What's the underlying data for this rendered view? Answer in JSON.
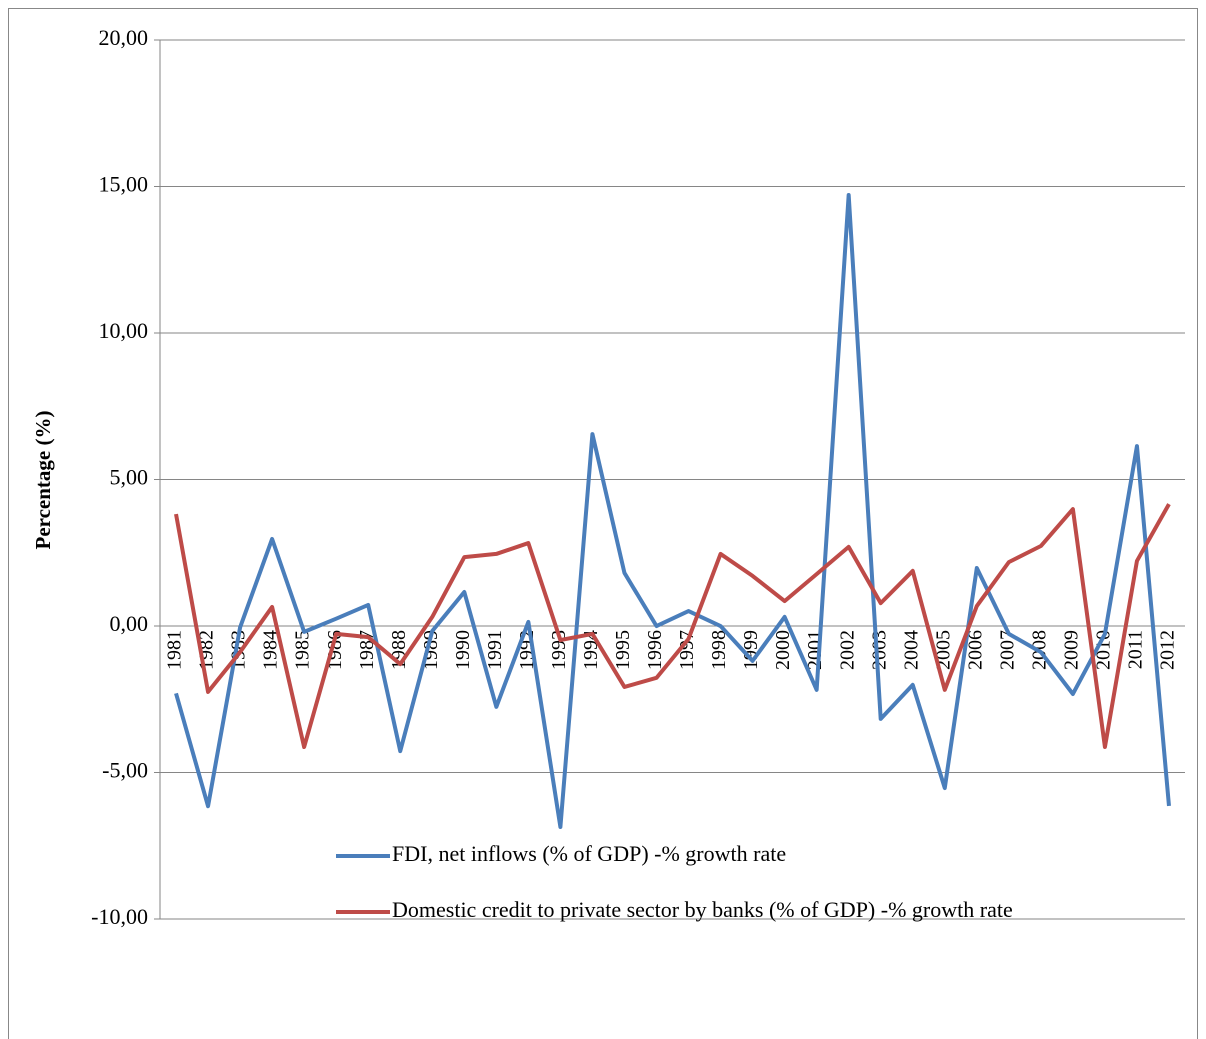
{
  "chart_data": {
    "type": "line",
    "y_label": "Percentage (%)",
    "categories": [
      "1981",
      "1982",
      "1983",
      "1984",
      "1985",
      "1986",
      "1987",
      "1988",
      "1989",
      "1990",
      "1991",
      "1992",
      "1993",
      "1994",
      "1995",
      "1996",
      "1997",
      "1998",
      "1999",
      "2000",
      "2001",
      "2002",
      "2003",
      "2004",
      "2005",
      "2006",
      "2007",
      "2008",
      "2009",
      "2010",
      "2011",
      "2012"
    ],
    "series": [
      {
        "name": "FDI, net inflows (% of GDP)  -% growth rate",
        "color": "#4a7ebb",
        "values": [
          -2.3,
          -6.15,
          -0.05,
          2.97,
          -0.2,
          0.25,
          0.72,
          -4.27,
          -0.17,
          1.16,
          -2.76,
          0.14,
          -6.86,
          6.55,
          1.81,
          0,
          0.51,
          0,
          -1.19,
          0.31,
          -2.18,
          14.71,
          -3.17,
          -2.01,
          -5.53,
          1.98,
          -0.27,
          -0.89,
          -2.32,
          -0.27,
          6.14,
          -6.14
        ]
      },
      {
        "name": "Domestic credit to private sector by banks (% of GDP) -% growth rate",
        "color": "#be4b48",
        "values": [
          3.82,
          -2.25,
          -0.89,
          0.65,
          -4.13,
          -0.27,
          -0.38,
          -1.3,
          0.31,
          2.35,
          2.46,
          2.83,
          -0.48,
          -0.27,
          -2.08,
          -1.77,
          -0.44,
          2.46,
          1.71,
          0.85,
          1.77,
          2.7,
          0.78,
          1.88,
          -2.18,
          0.68,
          2.18,
          2.73,
          3.99,
          -4.13,
          2.22,
          4.16
        ]
      }
    ],
    "ylim": [
      -10,
      20
    ],
    "yticks": [
      {
        "value": -10,
        "label": "-10,00"
      },
      {
        "value": -5,
        "label": "-5,00"
      },
      {
        "value": 0,
        "label": "0,00"
      },
      {
        "value": 5,
        "label": "5,00"
      },
      {
        "value": 10,
        "label": "10,00"
      },
      {
        "value": 15,
        "label": "15,00"
      },
      {
        "value": 20,
        "label": "20,00"
      }
    ],
    "grid": true,
    "legend": "bottom"
  }
}
